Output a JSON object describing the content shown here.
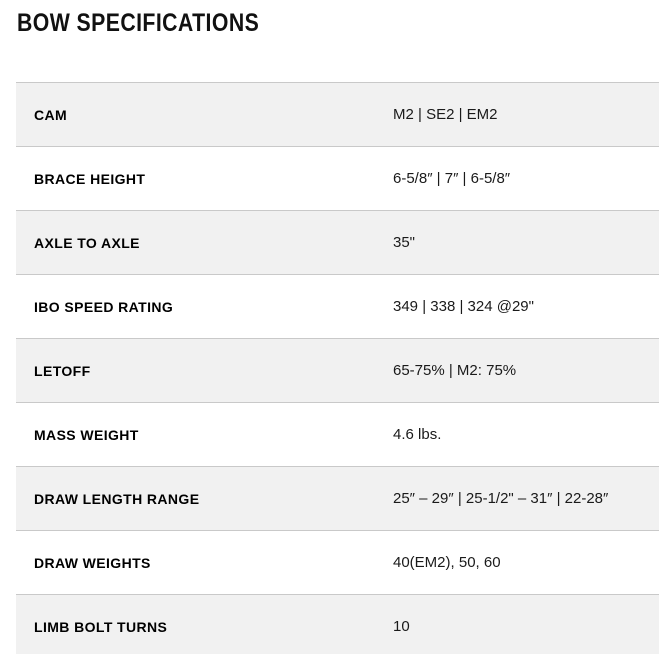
{
  "title": "BOW SPECIFICATIONS",
  "colors": {
    "row_alt_bg": "#f1f1f1",
    "border": "#c9c9c9",
    "text": "#111111"
  },
  "table": {
    "rows": [
      {
        "label": "CAM",
        "value": "M2 | SE2 | EM2"
      },
      {
        "label": "BRACE HEIGHT",
        "value": "6-5/8″ | 7″ | 6-5/8″"
      },
      {
        "label": "AXLE TO AXLE",
        "value": "35\""
      },
      {
        "label": "IBO SPEED RATING",
        "value": "349 | 338 | 324 @29\""
      },
      {
        "label": "LETOFF",
        "value": "65-75% | M2: 75%"
      },
      {
        "label": "MASS WEIGHT",
        "value": "4.6 lbs."
      },
      {
        "label": "DRAW LENGTH RANGE",
        "value": "25″ – 29″ | 25-1/2\" – 31″ | 22-28″"
      },
      {
        "label": "DRAW WEIGHTS",
        "value": "40(EM2), 50, 60"
      },
      {
        "label": "LIMB BOLT TURNS",
        "value": "10"
      }
    ]
  }
}
